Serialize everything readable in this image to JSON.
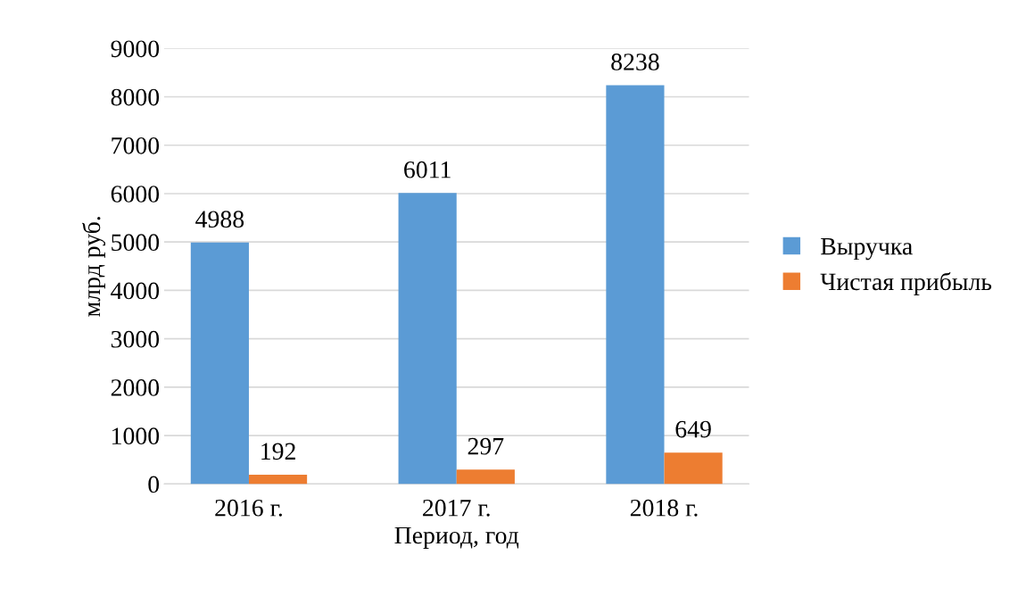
{
  "chart_data": {
    "type": "bar",
    "xlabel": "Период, год",
    "ylabel": "млрд руб.",
    "categories": [
      "2016 г.",
      "2017 г.",
      "2018 г."
    ],
    "series": [
      {
        "name": "Выручка",
        "color": "#5b9bd5",
        "values": [
          4988,
          6011,
          8238
        ]
      },
      {
        "name": "Чистая прибыль",
        "color": "#ed7d31",
        "values": [
          192,
          297,
          649
        ]
      }
    ],
    "ylim": [
      0,
      9000
    ],
    "yticks": [
      0,
      1000,
      2000,
      3000,
      4000,
      5000,
      6000,
      7000,
      8000,
      9000
    ],
    "grid": "y",
    "legend": "right",
    "data_labels": true
  }
}
